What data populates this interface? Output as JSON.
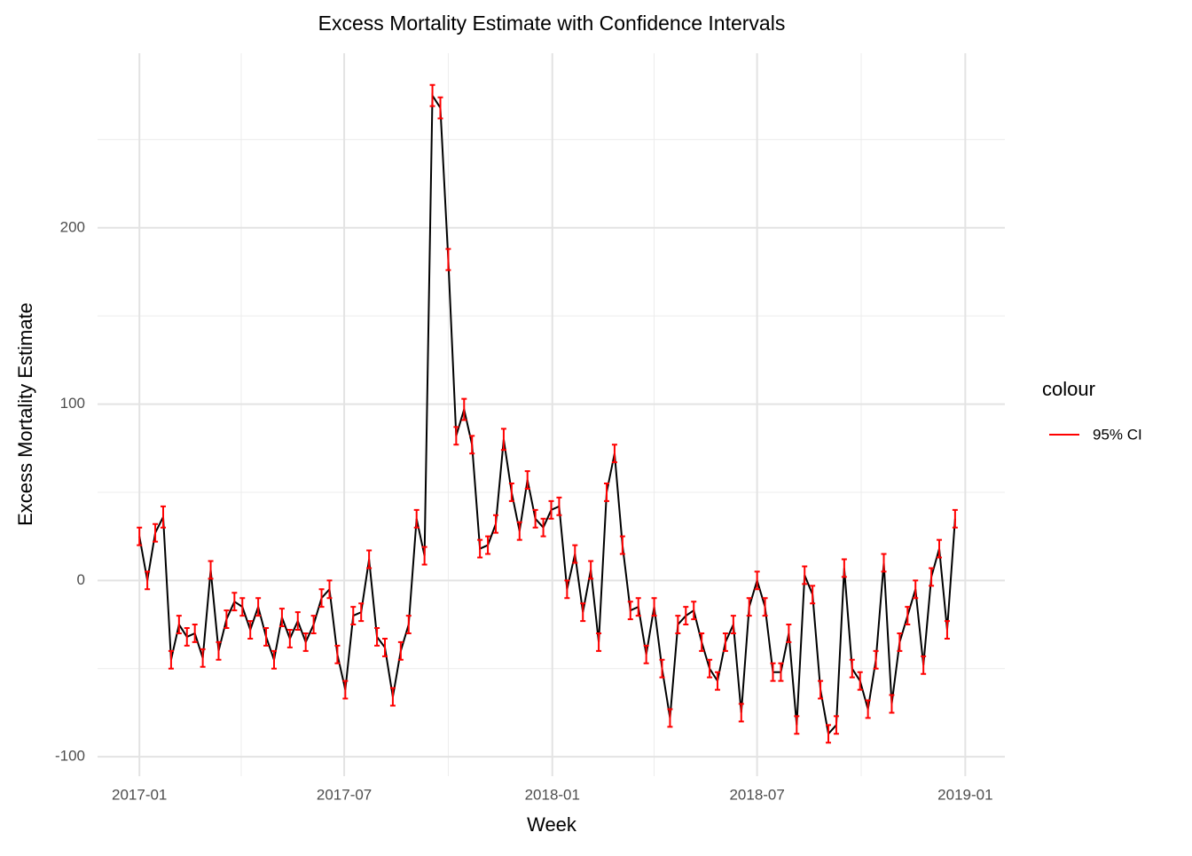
{
  "chart_data": {
    "type": "line",
    "title": "Excess Mortality Estimate with Confidence Intervals",
    "x_label": "Week",
    "y_label": "Excess Mortality Estimate",
    "legend_title": "colour",
    "legend_position": "right",
    "line_color": "#000000",
    "x": [
      0,
      7,
      14,
      21,
      28,
      35,
      42,
      49,
      56,
      63,
      70,
      77,
      84,
      91,
      98,
      105,
      112,
      119,
      126,
      133,
      140,
      147,
      154,
      161,
      168,
      175,
      182,
      189,
      196,
      203,
      210,
      217,
      224,
      231,
      238,
      245,
      252,
      259,
      266,
      273,
      280,
      287,
      294,
      301,
      308,
      315,
      322,
      329,
      336,
      343,
      350,
      357,
      364,
      371,
      378,
      385,
      392,
      399,
      406,
      413,
      420,
      427,
      434,
      441,
      448,
      455,
      462,
      469,
      476,
      483,
      490,
      497,
      504,
      511,
      518,
      525,
      532,
      539,
      546,
      553,
      560,
      567,
      574,
      581,
      588,
      595,
      602,
      609,
      616,
      623,
      630,
      637,
      644,
      651,
      658,
      665,
      672,
      679,
      686,
      693,
      700,
      707,
      714,
      721
    ],
    "values": [
      25,
      0,
      27,
      36,
      -45,
      -25,
      -32,
      -30,
      -44,
      6,
      -40,
      -22,
      -12,
      -15,
      -28,
      -15,
      -32,
      -45,
      -21,
      -33,
      -23,
      -35,
      -25,
      -10,
      -5,
      -42,
      -62,
      -20,
      -18,
      12,
      -32,
      -38,
      -66,
      -40,
      -25,
      35,
      14,
      275,
      268,
      182,
      82,
      97,
      77,
      18,
      20,
      32,
      80,
      50,
      28,
      57,
      35,
      30,
      40,
      42,
      -5,
      15,
      -18,
      6,
      -35,
      50,
      72,
      20,
      -17,
      -15,
      -42,
      -15,
      -50,
      -78,
      -25,
      -20,
      -17,
      -35,
      -50,
      -57,
      -35,
      -25,
      -75,
      -15,
      0,
      -15,
      -52,
      -52,
      -30,
      -82,
      3,
      -8,
      -62,
      -87,
      -82,
      7,
      -50,
      -57,
      -73,
      -45,
      10,
      -70,
      -35,
      -20,
      -5,
      -48,
      2,
      18,
      -28,
      35
    ],
    "errorbars": {
      "name": "95% CI",
      "color": "#ff0000",
      "error": [
        5,
        5,
        5,
        6,
        5,
        5,
        5,
        5,
        5,
        5,
        5,
        5,
        5,
        5,
        5,
        5,
        5,
        5,
        5,
        5,
        5,
        5,
        5,
        5,
        5,
        5,
        5,
        5,
        5,
        5,
        5,
        5,
        5,
        5,
        5,
        5,
        5,
        6,
        6,
        6,
        5,
        6,
        5,
        5,
        5,
        5,
        6,
        5,
        5,
        5,
        5,
        5,
        5,
        5,
        5,
        5,
        5,
        5,
        5,
        5,
        5,
        5,
        5,
        5,
        5,
        5,
        5,
        5,
        5,
        5,
        5,
        5,
        5,
        5,
        5,
        5,
        5,
        5,
        5,
        5,
        5,
        5,
        5,
        5,
        5,
        5,
        5,
        5,
        5,
        5,
        5,
        5,
        5,
        5,
        5,
        5,
        5,
        5,
        5,
        5,
        5,
        5,
        5,
        5
      ]
    },
    "xlim": [
      -37,
      765
    ],
    "xticks": [
      {
        "value": 0,
        "label": "2017-01"
      },
      {
        "value": 181,
        "label": "2017-07"
      },
      {
        "value": 365,
        "label": "2018-01"
      },
      {
        "value": 546,
        "label": "2018-07"
      },
      {
        "value": 730,
        "label": "2019-01"
      }
    ],
    "xticks_minor": [
      90,
      273,
      455,
      638
    ],
    "ylim": [
      -111,
      299
    ],
    "yticks": [
      -100,
      0,
      100,
      200
    ],
    "yticks_minor": [
      -50,
      50,
      150,
      250
    ],
    "grid": true
  }
}
